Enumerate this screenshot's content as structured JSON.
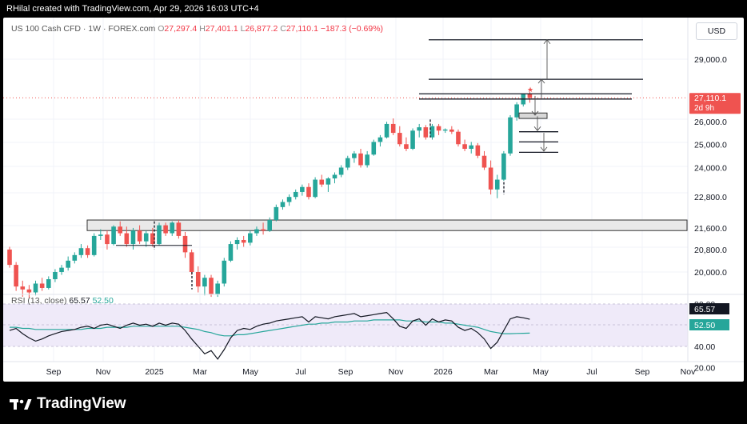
{
  "header": {
    "credit": "RHilal created with TradingView.com, Apr 29, 2026 16:03 UTC+4"
  },
  "symbol": {
    "name": "US 100 Cash CFD · 1W · FOREX.com",
    "open_label": "O",
    "open": "27,297.4",
    "high_label": "H",
    "high": "27,401.1",
    "low_label": "L",
    "low": "26,877.2",
    "close_label": "C",
    "close": "27,110.1",
    "change": "−187.3 (−0.69%)"
  },
  "currency_button": "USD",
  "price_axis": {
    "ticks": [
      "29,000.0",
      "26,000.0",
      "25,000.0",
      "24,000.0",
      "22,800.0",
      "21,600.0",
      "20,800.0",
      "20,000.0"
    ],
    "last_price": "27,110.1",
    "countdown": "2d 9h"
  },
  "time_axis": {
    "labels": [
      "Sep",
      "Nov",
      "2025",
      "Mar",
      "May",
      "Jul",
      "Sep",
      "Nov",
      "2026",
      "Mar",
      "May",
      "Jul",
      "Sep",
      "Nov"
    ]
  },
  "rsi": {
    "label": "RSI (13, close)",
    "value": "65.57",
    "ma_value": "52.50",
    "axis_ticks": [
      "80.00",
      "40.00",
      "20.00"
    ]
  },
  "chart_data": {
    "type": "candlestick",
    "interval": "1W",
    "price_scale": "log",
    "ylim": [
      19100,
      31200
    ],
    "candles": [
      [
        20800,
        20900,
        20150,
        20250
      ],
      [
        20250,
        20350,
        19350,
        19500
      ],
      [
        19500,
        19700,
        19150,
        19400
      ],
      [
        19400,
        19550,
        19100,
        19300
      ],
      [
        19300,
        19700,
        19200,
        19600
      ],
      [
        19600,
        19800,
        19350,
        19450
      ],
      [
        19450,
        19850,
        19400,
        19750
      ],
      [
        19750,
        20100,
        19650,
        20000
      ],
      [
        20000,
        20250,
        19900,
        20150
      ],
      [
        20150,
        20550,
        20050,
        20400
      ],
      [
        20400,
        20700,
        20300,
        20600
      ],
      [
        20600,
        21000,
        20500,
        20850
      ],
      [
        20850,
        20950,
        20500,
        20600
      ],
      [
        20600,
        21400,
        20550,
        21300
      ],
      [
        21300,
        21550,
        21150,
        21350
      ],
      [
        21350,
        21500,
        20800,
        21000
      ],
      [
        21000,
        21700,
        20950,
        21650
      ],
      [
        21650,
        21850,
        21300,
        21400
      ],
      [
        21400,
        21650,
        20900,
        21000
      ],
      [
        21000,
        21600,
        20800,
        21500
      ],
      [
        21500,
        21700,
        21000,
        21100
      ],
      [
        21100,
        21500,
        20900,
        21400
      ],
      [
        21400,
        21600,
        20900,
        21000
      ],
      [
        21000,
        21800,
        20950,
        21700
      ],
      [
        21700,
        21800,
        21300,
        21400
      ],
      [
        21400,
        21850,
        21300,
        21800
      ],
      [
        21800,
        21900,
        21200,
        21300
      ],
      [
        21300,
        21450,
        20500,
        20700
      ],
      [
        20700,
        20800,
        19900,
        20000
      ],
      [
        20000,
        20200,
        19300,
        19500
      ],
      [
        19500,
        19900,
        19200,
        19800
      ],
      [
        19800,
        19900,
        19150,
        19250
      ],
      [
        19250,
        19700,
        19150,
        19600
      ],
      [
        19600,
        20500,
        19500,
        20400
      ],
      [
        20400,
        21100,
        20350,
        21000
      ],
      [
        21000,
        21250,
        20800,
        21150
      ],
      [
        21150,
        21300,
        20900,
        21050
      ],
      [
        21050,
        21500,
        20950,
        21400
      ],
      [
        21400,
        21650,
        21300,
        21550
      ],
      [
        21550,
        21800,
        21350,
        21500
      ],
      [
        21500,
        22000,
        21450,
        21900
      ],
      [
        21900,
        22500,
        21850,
        22400
      ],
      [
        22400,
        22700,
        22300,
        22600
      ],
      [
        22600,
        22900,
        22450,
        22800
      ],
      [
        22800,
        23100,
        22700,
        23000
      ],
      [
        23000,
        23300,
        22850,
        23200
      ],
      [
        23200,
        23350,
        22700,
        22800
      ],
      [
        22800,
        23600,
        22750,
        23500
      ],
      [
        23500,
        23700,
        23200,
        23300
      ],
      [
        23300,
        23600,
        23000,
        23550
      ],
      [
        23550,
        23800,
        23350,
        23700
      ],
      [
        23700,
        24100,
        23600,
        24000
      ],
      [
        24000,
        24500,
        23900,
        24400
      ],
      [
        24400,
        24700,
        24200,
        24600
      ],
      [
        24600,
        24800,
        24000,
        24100
      ],
      [
        24100,
        24700,
        24000,
        24550
      ],
      [
        24550,
        25200,
        24500,
        25100
      ],
      [
        25100,
        25400,
        24900,
        25300
      ],
      [
        25300,
        26000,
        25250,
        25900
      ],
      [
        25900,
        26150,
        25400,
        25500
      ],
      [
        25500,
        25800,
        24900,
        25000
      ],
      [
        25000,
        25300,
        24700,
        24800
      ],
      [
        24800,
        25700,
        24750,
        25600
      ],
      [
        25600,
        25900,
        25300,
        25750
      ],
      [
        25750,
        25850,
        25200,
        25300
      ],
      [
        25300,
        25900,
        25200,
        25800
      ],
      [
        25800,
        25900,
        25400,
        25600
      ],
      [
        25600,
        25700,
        25500,
        25650
      ],
      [
        25650,
        25800,
        25450,
        25550
      ],
      [
        25550,
        25650,
        24900,
        25000
      ],
      [
        25000,
        25200,
        24700,
        24800
      ],
      [
        24800,
        25100,
        24600,
        24950
      ],
      [
        24950,
        25050,
        24400,
        24500
      ],
      [
        24500,
        24700,
        23900,
        24000
      ],
      [
        24000,
        24300,
        22900,
        23100
      ],
      [
        23100,
        23700,
        22750,
        23500
      ],
      [
        23500,
        24700,
        23450,
        24600
      ],
      [
        24600,
        26300,
        24500,
        26200
      ],
      [
        26200,
        26900,
        26050,
        26800
      ],
      [
        26800,
        27300,
        26700,
        27297.4
      ],
      [
        27297.4,
        27401.1,
        26877.2,
        27110.1
      ]
    ],
    "support_zone": [
      21500,
      21900
    ],
    "horizontal_levels": [
      30000,
      28000,
      27300,
      27050,
      26250,
      25550,
      25100,
      24650
    ],
    "rsi_values": [
      55,
      57,
      52,
      48,
      45,
      47,
      50,
      52,
      54,
      55,
      56,
      58,
      59,
      57,
      60,
      61,
      59,
      57,
      60,
      62,
      60,
      61,
      59,
      62,
      60,
      62,
      61,
      55,
      47,
      40,
      33,
      36,
      28,
      37,
      48,
      55,
      57,
      56,
      59,
      61,
      62,
      64,
      65,
      66,
      67,
      68,
      63,
      68,
      67,
      66,
      68,
      69,
      70,
      71,
      68,
      69,
      70,
      71,
      72,
      66,
      59,
      57,
      64,
      66,
      60,
      66,
      63,
      65,
      64,
      58,
      55,
      57,
      53,
      47,
      38,
      44,
      55,
      66,
      68,
      67,
      65.57
    ],
    "rsi_ma_values": [
      58,
      58,
      57,
      57,
      56,
      56,
      56,
      56,
      56,
      56,
      56,
      56,
      57,
      57,
      57,
      58,
      58,
      58,
      58,
      59,
      59,
      59,
      59,
      59,
      59,
      59,
      59,
      58,
      57,
      56,
      54,
      53,
      51,
      50,
      50,
      51,
      51,
      52,
      53,
      54,
      55,
      56,
      57,
      58,
      59,
      60,
      61,
      61,
      62,
      62,
      63,
      63,
      63,
      64,
      64,
      64,
      65,
      65,
      65,
      65,
      65,
      64,
      64,
      64,
      63,
      63,
      63,
      62,
      62,
      61,
      60,
      59,
      58,
      56,
      54,
      53,
      52,
      52,
      52.2,
      52.4,
      52.5
    ],
    "rsi_ylim": [
      0,
      100
    ]
  },
  "colors": {
    "up": "#26a69a",
    "down": "#ef5350",
    "rsi_line": "#131722",
    "rsi_ma": "#26a69a",
    "rsi_band": "#efeaf9",
    "zone": "#e9e9e9"
  },
  "footer": {
    "brand": "TradingView"
  }
}
